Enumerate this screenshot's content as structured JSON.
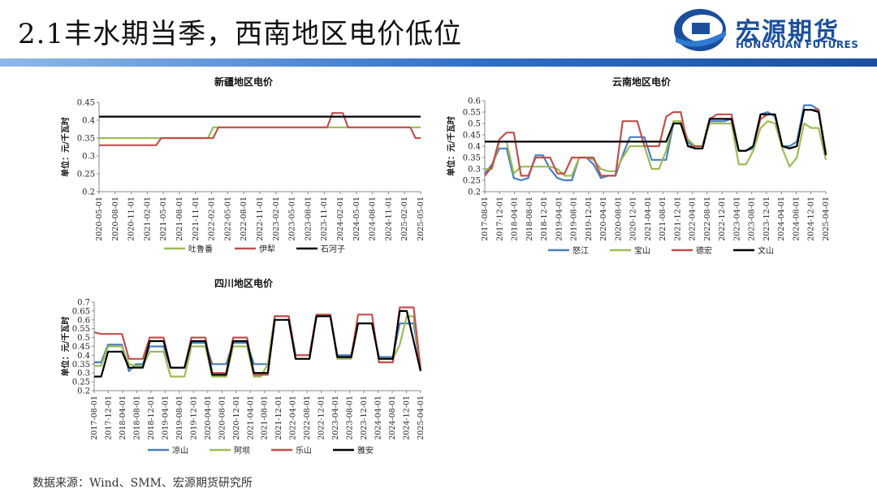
{
  "header": {
    "title": "2.1丰水期当季，西南地区电价低位"
  },
  "logo": {
    "name": "宏源期货",
    "english": "HONGYUAN FUTURES"
  },
  "footer": {
    "source": "数据来源：Wind、SMM、宏源期货研究所"
  },
  "colors": {
    "blue": "#4a7ebb",
    "green": "#9bbb59",
    "red": "#c0504d",
    "black": "#000000",
    "brand": "#1b4f9c"
  },
  "chart_data": [
    {
      "id": "xinjiang",
      "type": "line",
      "title": "新疆地区电价",
      "ylabel": "单位：元/千瓦时",
      "ylim": [
        0.2,
        0.45
      ],
      "yticks": [
        0.2,
        0.25,
        0.3,
        0.35,
        0.4,
        0.45
      ],
      "x": [
        "2020-05",
        "2020-06",
        "2020-07",
        "2020-08",
        "2020-09",
        "2020-10",
        "2020-11",
        "2020-12",
        "2021-01",
        "2021-02",
        "2021-03",
        "2021-04",
        "2021-05",
        "2021-06",
        "2021-07",
        "2021-08",
        "2021-09",
        "2021-10",
        "2021-11",
        "2021-12",
        "2022-01",
        "2022-02",
        "2022-03",
        "2022-04",
        "2022-05",
        "2022-06",
        "2022-07",
        "2022-08",
        "2022-09",
        "2022-10",
        "2022-11",
        "2022-12",
        "2023-01",
        "2023-02",
        "2023-03",
        "2023-04",
        "2023-05",
        "2023-06",
        "2023-07",
        "2023-08",
        "2023-09",
        "2023-10",
        "2023-11",
        "2023-12",
        "2024-01",
        "2024-02",
        "2024-03",
        "2024-04",
        "2024-05",
        "2024-06",
        "2024-07",
        "2024-08",
        "2024-09",
        "2024-10",
        "2024-11",
        "2024-12",
        "2025-01",
        "2025-02",
        "2025-03",
        "2025-04",
        "2025-05",
        "2025-06",
        "2025-07"
      ],
      "xticks": [
        "2020-05-01",
        "2020-08-01",
        "2020-11-01",
        "2021-02-01",
        "2021-05-01",
        "2021-08-01",
        "2021-11-01",
        "2022-02-01",
        "2022-05-01",
        "2022-08-01",
        "2022-11-01",
        "2023-02-01",
        "2023-05-01",
        "2023-08-01",
        "2023-11-01",
        "2024-02-01",
        "2024-05-01",
        "2024-08-01",
        "2024-11-01",
        "2025-02-01",
        "2025-05-01"
      ],
      "series": [
        {
          "name": "吐鲁番",
          "color": "#9bbb59",
          "values": [
            0.35,
            0.35,
            0.35,
            0.35,
            0.35,
            0.35,
            0.35,
            0.35,
            0.35,
            0.35,
            0.35,
            0.35,
            0.35,
            0.35,
            0.35,
            0.35,
            0.35,
            0.35,
            0.35,
            0.35,
            0.35,
            0.35,
            0.38,
            0.38,
            0.38,
            0.38,
            0.38,
            0.38,
            0.38,
            0.38,
            0.38,
            0.38,
            0.38,
            0.38,
            0.38,
            0.38,
            0.38,
            0.38,
            0.38,
            0.38,
            0.38,
            0.38,
            0.38,
            0.38,
            0.38,
            0.38,
            0.38,
            0.38,
            0.38,
            0.38,
            0.38,
            0.38,
            0.38,
            0.38,
            0.38,
            0.38,
            0.38,
            0.38,
            0.38,
            0.38,
            0.38,
            0.38,
            0.38
          ]
        },
        {
          "name": "伊犁",
          "color": "#c0504d",
          "values": [
            0.33,
            0.33,
            0.33,
            0.33,
            0.33,
            0.33,
            0.33,
            0.33,
            0.33,
            0.33,
            0.33,
            0.33,
            0.35,
            0.35,
            0.35,
            0.35,
            0.35,
            0.35,
            0.35,
            0.35,
            0.35,
            0.35,
            0.35,
            0.38,
            0.38,
            0.38,
            0.38,
            0.38,
            0.38,
            0.38,
            0.38,
            0.38,
            0.38,
            0.38,
            0.38,
            0.38,
            0.38,
            0.38,
            0.38,
            0.38,
            0.38,
            0.38,
            0.38,
            0.38,
            0.38,
            0.42,
            0.42,
            0.42,
            0.38,
            0.38,
            0.38,
            0.38,
            0.38,
            0.38,
            0.38,
            0.38,
            0.38,
            0.38,
            0.38,
            0.38,
            0.38,
            0.35,
            0.35
          ]
        },
        {
          "name": "石河子",
          "color": "#000000",
          "values": [
            0.41,
            0.41,
            0.41,
            0.41,
            0.41,
            0.41,
            0.41,
            0.41,
            0.41,
            0.41,
            0.41,
            0.41,
            0.41,
            0.41,
            0.41,
            0.41,
            0.41,
            0.41,
            0.41,
            0.41,
            0.41,
            0.41,
            0.41,
            0.41,
            0.41,
            0.41,
            0.41,
            0.41,
            0.41,
            0.41,
            0.41,
            0.41,
            0.41,
            0.41,
            0.41,
            0.41,
            0.41,
            0.41,
            0.41,
            0.41,
            0.41,
            0.41,
            0.41,
            0.41,
            0.41,
            0.41,
            0.41,
            0.41,
            0.41,
            0.41,
            0.41,
            0.41,
            0.41,
            0.41,
            0.41,
            0.41,
            0.41,
            0.41,
            0.41,
            0.41,
            0.41,
            0.41,
            0.41
          ]
        }
      ]
    },
    {
      "id": "yunnan",
      "type": "line",
      "title": "云南地区电价",
      "ylabel": "单位：元/千瓦时",
      "ylim": [
        0.2,
        0.6
      ],
      "yticks": [
        0.2,
        0.25,
        0.3,
        0.35,
        0.4,
        0.45,
        0.5,
        0.55,
        0.6
      ],
      "x": [
        "2017-08",
        "2017-10",
        "2017-12",
        "2018-02",
        "2018-04",
        "2018-06",
        "2018-08",
        "2018-10",
        "2018-12",
        "2019-02",
        "2019-04",
        "2019-06",
        "2019-08",
        "2019-10",
        "2019-12",
        "2020-02",
        "2020-04",
        "2020-06",
        "2020-08",
        "2020-10",
        "2020-12",
        "2021-02",
        "2021-04",
        "2021-06",
        "2021-08",
        "2021-10",
        "2021-12",
        "2022-02",
        "2022-04",
        "2022-06",
        "2022-08",
        "2022-10",
        "2022-12",
        "2023-02",
        "2023-04",
        "2023-06",
        "2023-08",
        "2023-10",
        "2023-12",
        "2024-02",
        "2024-04",
        "2024-06",
        "2024-08",
        "2024-10",
        "2024-12",
        "2025-02",
        "2025-04",
        "2025-06"
      ],
      "xticks": [
        "2017-08-01",
        "2017-12-01",
        "2018-04-01",
        "2018-08-01",
        "2018-12-01",
        "2019-04-01",
        "2019-08-01",
        "2019-12-01",
        "2020-04-01",
        "2020-08-01",
        "2020-12-01",
        "2021-04-01",
        "2021-08-01",
        "2021-12-01",
        "2022-04-01",
        "2022-08-01",
        "2022-12-01",
        "2023-04-01",
        "2023-08-01",
        "2023-12-01",
        "2024-04-01",
        "2024-08-01",
        "2024-12-01",
        "2025-04-01"
      ],
      "series": [
        {
          "name": "怒江",
          "color": "#4a7ebb",
          "values": [
            0.28,
            0.32,
            0.39,
            0.39,
            0.26,
            0.25,
            0.26,
            0.36,
            0.36,
            0.3,
            0.26,
            0.25,
            0.25,
            0.35,
            0.35,
            0.32,
            0.26,
            0.27,
            0.27,
            0.36,
            0.44,
            0.44,
            0.44,
            0.34,
            0.34,
            0.34,
            0.5,
            0.5,
            0.42,
            0.39,
            0.39,
            0.51,
            0.51,
            0.51,
            0.52,
            0.38,
            0.38,
            0.39,
            0.54,
            0.55,
            0.53,
            0.4,
            0.4,
            0.42,
            0.58,
            0.58,
            0.56,
            0.37
          ]
        },
        {
          "name": "宝山",
          "color": "#9bbb59",
          "values": [
            0.3,
            0.3,
            0.42,
            0.42,
            0.28,
            0.31,
            0.31,
            0.31,
            0.31,
            0.31,
            0.3,
            0.27,
            0.27,
            0.35,
            0.35,
            0.34,
            0.3,
            0.29,
            0.29,
            0.35,
            0.4,
            0.4,
            0.4,
            0.3,
            0.3,
            0.38,
            0.51,
            0.51,
            0.43,
            0.4,
            0.4,
            0.5,
            0.5,
            0.5,
            0.5,
            0.32,
            0.32,
            0.38,
            0.48,
            0.51,
            0.5,
            0.39,
            0.31,
            0.35,
            0.5,
            0.48,
            0.48,
            0.34
          ]
        },
        {
          "name": "德宏",
          "color": "#c0504d",
          "values": [
            0.27,
            0.31,
            0.43,
            0.46,
            0.46,
            0.27,
            0.27,
            0.35,
            0.35,
            0.35,
            0.28,
            0.28,
            0.35,
            0.35,
            0.35,
            0.35,
            0.27,
            0.27,
            0.27,
            0.51,
            0.51,
            0.51,
            0.4,
            0.4,
            0.4,
            0.53,
            0.55,
            0.55,
            0.4,
            0.4,
            0.4,
            0.52,
            0.54,
            0.54,
            0.54,
            0.38,
            0.38,
            0.4,
            0.52,
            0.54,
            0.54,
            0.4,
            0.39,
            0.4,
            0.56,
            0.56,
            0.56,
            0.37
          ]
        },
        {
          "name": "文山",
          "color": "#000000",
          "values": [
            0.42,
            0.42,
            0.42,
            0.42,
            0.42,
            0.42,
            0.42,
            0.42,
            0.42,
            0.42,
            0.42,
            0.42,
            0.42,
            0.42,
            0.42,
            0.42,
            0.42,
            0.42,
            0.42,
            0.42,
            0.42,
            0.42,
            0.42,
            0.42,
            0.42,
            0.42,
            0.5,
            0.5,
            0.4,
            0.39,
            0.39,
            0.52,
            0.52,
            0.52,
            0.52,
            0.38,
            0.38,
            0.4,
            0.54,
            0.54,
            0.54,
            0.4,
            0.39,
            0.4,
            0.56,
            0.56,
            0.55,
            0.36
          ]
        }
      ]
    },
    {
      "id": "sichuan",
      "type": "line",
      "title": "四川地区电价",
      "ylabel": "单位：元/千瓦时",
      "ylim": [
        0.2,
        0.7
      ],
      "yticks": [
        0.2,
        0.25,
        0.3,
        0.35,
        0.4,
        0.45,
        0.5,
        0.55,
        0.6,
        0.65,
        0.7
      ],
      "x": [
        "2017-08",
        "2017-10",
        "2017-12",
        "2018-02",
        "2018-04",
        "2018-06",
        "2018-08",
        "2018-10",
        "2018-12",
        "2019-02",
        "2019-04",
        "2019-06",
        "2019-08",
        "2019-10",
        "2019-12",
        "2020-02",
        "2020-04",
        "2020-06",
        "2020-08",
        "2020-10",
        "2020-12",
        "2021-02",
        "2021-04",
        "2021-06",
        "2021-08",
        "2021-10",
        "2021-12",
        "2022-02",
        "2022-04",
        "2022-06",
        "2022-08",
        "2022-10",
        "2022-12",
        "2023-02",
        "2023-04",
        "2023-06",
        "2023-08",
        "2023-10",
        "2023-12",
        "2024-02",
        "2024-04",
        "2024-06",
        "2024-08",
        "2024-10",
        "2024-12",
        "2025-02",
        "2025-04",
        "2025-06"
      ],
      "xticks": [
        "2017-08-01",
        "2017-12-01",
        "2018-04-01",
        "2018-08-01",
        "2018-12-01",
        "2019-04-01",
        "2019-08-01",
        "2019-12-01",
        "2020-04-01",
        "2020-08-01",
        "2020-12-01",
        "2021-04-01",
        "2021-08-01",
        "2021-12-01",
        "2022-04-01",
        "2022-08-01",
        "2022-12-01",
        "2023-04-01",
        "2023-08-01",
        "2023-12-01",
        "2024-04-01",
        "2024-08-01",
        "2024-12-01",
        "2025-04-01"
      ],
      "series": [
        {
          "name": "凉山",
          "color": "#4a7ebb",
          "values": [
            0.36,
            0.36,
            0.46,
            0.46,
            0.46,
            0.31,
            0.35,
            0.35,
            0.45,
            0.45,
            0.45,
            0.33,
            0.33,
            0.33,
            0.47,
            0.47,
            0.47,
            0.35,
            0.35,
            0.35,
            0.47,
            0.47,
            0.47,
            0.35,
            0.35,
            0.35,
            0.62,
            0.62,
            0.62,
            0.4,
            0.4,
            0.4,
            0.62,
            0.62,
            0.62,
            0.4,
            0.4,
            0.4,
            0.58,
            0.58,
            0.58,
            0.39,
            0.39,
            0.39,
            0.58,
            0.58,
            0.58,
            0.32
          ]
        },
        {
          "name": "阿坝",
          "color": "#9bbb59",
          "values": [
            0.34,
            0.34,
            0.45,
            0.45,
            0.45,
            0.35,
            0.34,
            0.34,
            0.42,
            0.42,
            0.42,
            0.28,
            0.28,
            0.28,
            0.45,
            0.45,
            0.45,
            0.28,
            0.28,
            0.28,
            0.45,
            0.45,
            0.45,
            0.28,
            0.28,
            0.35,
            0.62,
            0.62,
            0.62,
            0.38,
            0.38,
            0.38,
            0.62,
            0.62,
            0.62,
            0.38,
            0.38,
            0.38,
            0.58,
            0.58,
            0.58,
            0.38,
            0.38,
            0.38,
            0.46,
            0.62,
            0.62,
            0.32
          ]
        },
        {
          "name": "乐山",
          "color": "#c0504d",
          "values": [
            0.53,
            0.52,
            0.52,
            0.52,
            0.52,
            0.38,
            0.38,
            0.38,
            0.5,
            0.5,
            0.5,
            0.33,
            0.33,
            0.33,
            0.5,
            0.5,
            0.5,
            0.3,
            0.3,
            0.3,
            0.5,
            0.5,
            0.5,
            0.29,
            0.29,
            0.29,
            0.62,
            0.62,
            0.62,
            0.4,
            0.4,
            0.4,
            0.63,
            0.63,
            0.63,
            0.39,
            0.39,
            0.39,
            0.63,
            0.63,
            0.63,
            0.36,
            0.36,
            0.36,
            0.67,
            0.67,
            0.67,
            0.32
          ]
        },
        {
          "name": "雅安",
          "color": "#000000",
          "values": [
            0.28,
            0.28,
            0.42,
            0.42,
            0.42,
            0.33,
            0.33,
            0.33,
            0.48,
            0.48,
            0.48,
            0.33,
            0.33,
            0.33,
            0.48,
            0.48,
            0.48,
            0.29,
            0.29,
            0.29,
            0.48,
            0.48,
            0.48,
            0.3,
            0.3,
            0.3,
            0.6,
            0.6,
            0.6,
            0.38,
            0.38,
            0.38,
            0.62,
            0.62,
            0.62,
            0.39,
            0.39,
            0.39,
            0.58,
            0.58,
            0.58,
            0.38,
            0.38,
            0.38,
            0.65,
            0.65,
            0.48,
            0.31
          ]
        }
      ]
    }
  ]
}
